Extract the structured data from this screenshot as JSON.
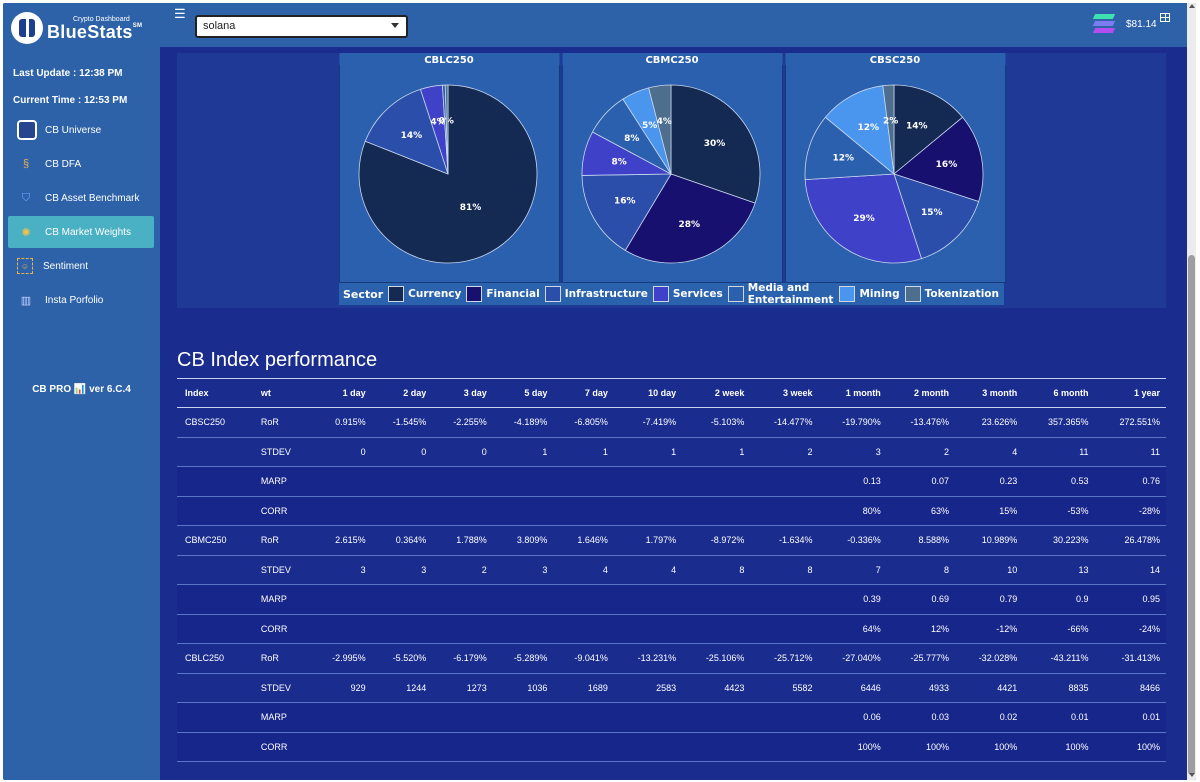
{
  "app": {
    "logo_subtitle": "Crypto Dashboard",
    "logo_name": "BlueStats",
    "logo_mark": "SM",
    "last_update": "Last Update : 12:38 PM",
    "current_time": "Current Time : 12:53 PM",
    "version": "CB PRO 📊 ver 6.C.4"
  },
  "sidebar": {
    "items": [
      {
        "label": "CB Universe",
        "icon": "cube-icon",
        "active": false
      },
      {
        "label": "CB DFA",
        "icon": "dfa-icon",
        "active": false
      },
      {
        "label": "CB Asset Benchmark",
        "icon": "shield-icon",
        "active": false
      },
      {
        "label": "CB Market Weights",
        "icon": "network-icon",
        "active": true
      },
      {
        "label": "Sentiment",
        "icon": "sentiment-icon",
        "active": false
      },
      {
        "label": "Insta Porfolio",
        "icon": "portfolio-chart-icon",
        "active": false
      }
    ]
  },
  "topbar": {
    "menu_icon": "hamburger-icon",
    "selected_asset": "solana",
    "token_icon": "solana-logo-icon",
    "price": "$81.14",
    "grid_icon": "table-icon"
  },
  "chart_data": {
    "type": "pie",
    "legend_title": "Sector",
    "legend_placement": "bottom",
    "categories": [
      "Currency",
      "Financial",
      "Infrastructure",
      "Services",
      "Media and Entertainment",
      "Mining",
      "Tokenization"
    ],
    "colors": [
      "#152a52",
      "#17106e",
      "#2a4eaa",
      "#3f41c8",
      "#2a60ae",
      "#4a95ee",
      "#4d6e8c"
    ],
    "series": [
      {
        "name": "CBLC250",
        "values": [
          81,
          0,
          14,
          4,
          0.5,
          0,
          0.5
        ],
        "labels": [
          "81%",
          "",
          "14%",
          "4%",
          "",
          "0%",
          ""
        ]
      },
      {
        "name": "CBMC250",
        "values": [
          30,
          28,
          16,
          8,
          8,
          5,
          4
        ],
        "labels": [
          "30%",
          "28%",
          "16%",
          "8%",
          "8%",
          "5%",
          "4%"
        ]
      },
      {
        "name": "CBSC250",
        "values": [
          14,
          16,
          15,
          29,
          12,
          12,
          2
        ],
        "labels": [
          "14%",
          "16%",
          "15%",
          "29%",
          "12%",
          "12%",
          "2%"
        ]
      }
    ]
  },
  "performance": {
    "title": "CB Index performance",
    "columns": [
      "Index",
      "wt",
      "1 day",
      "2 day",
      "3 day",
      "5 day",
      "7 day",
      "10 day",
      "2 week",
      "3 week",
      "1 month",
      "2 month",
      "3 month",
      "6 month",
      "1 year"
    ],
    "rows": [
      [
        "CBSC250",
        "RoR",
        "0.915%",
        "-1.545%",
        "-2.255%",
        "-4.189%",
        "-6.805%",
        "-7.419%",
        "-5.103%",
        "-14.477%",
        "-19.790%",
        "-13.476%",
        "23.626%",
        "357.365%",
        "272.551%"
      ],
      [
        "",
        "STDEV",
        "0",
        "0",
        "0",
        "1",
        "1",
        "1",
        "1",
        "2",
        "3",
        "2",
        "4",
        "11",
        "11"
      ],
      [
        "",
        "MARP",
        "",
        "",
        "",
        "",
        "",
        "",
        "",
        "",
        "0.13",
        "0.07",
        "0.23",
        "0.53",
        "0.76"
      ],
      [
        "",
        "CORR",
        "",
        "",
        "",
        "",
        "",
        "",
        "",
        "",
        "80%",
        "63%",
        "15%",
        "-53%",
        "-28%"
      ],
      [
        "CBMC250",
        "RoR",
        "2.615%",
        "0.364%",
        "1.788%",
        "3.809%",
        "1.646%",
        "1.797%",
        "-8.972%",
        "-1.634%",
        "-0.336%",
        "8.588%",
        "10.989%",
        "30.223%",
        "26.478%"
      ],
      [
        "",
        "STDEV",
        "3",
        "3",
        "2",
        "3",
        "4",
        "4",
        "8",
        "8",
        "7",
        "8",
        "10",
        "13",
        "14"
      ],
      [
        "",
        "MARP",
        "",
        "",
        "",
        "",
        "",
        "",
        "",
        "",
        "0.39",
        "0.69",
        "0.79",
        "0.9",
        "0.95"
      ],
      [
        "",
        "CORR",
        "",
        "",
        "",
        "",
        "",
        "",
        "",
        "",
        "64%",
        "12%",
        "-12%",
        "-66%",
        "-24%"
      ],
      [
        "CBLC250",
        "RoR",
        "-2.995%",
        "-5.520%",
        "-6.179%",
        "-5.289%",
        "-9.041%",
        "-13.231%",
        "-25.106%",
        "-25.712%",
        "-27.040%",
        "-25.777%",
        "-32.028%",
        "-43.211%",
        "-31.413%"
      ],
      [
        "",
        "STDEV",
        "929",
        "1244",
        "1273",
        "1036",
        "1689",
        "2583",
        "4423",
        "5582",
        "6446",
        "4933",
        "4421",
        "8835",
        "8466"
      ],
      [
        "",
        "MARP",
        "",
        "",
        "",
        "",
        "",
        "",
        "",
        "",
        "0.06",
        "0.03",
        "0.02",
        "0.01",
        "0.01"
      ],
      [
        "",
        "CORR",
        "",
        "",
        "",
        "",
        "",
        "",
        "",
        "",
        "100%",
        "100%",
        "100%",
        "100%",
        "100%"
      ]
    ]
  }
}
